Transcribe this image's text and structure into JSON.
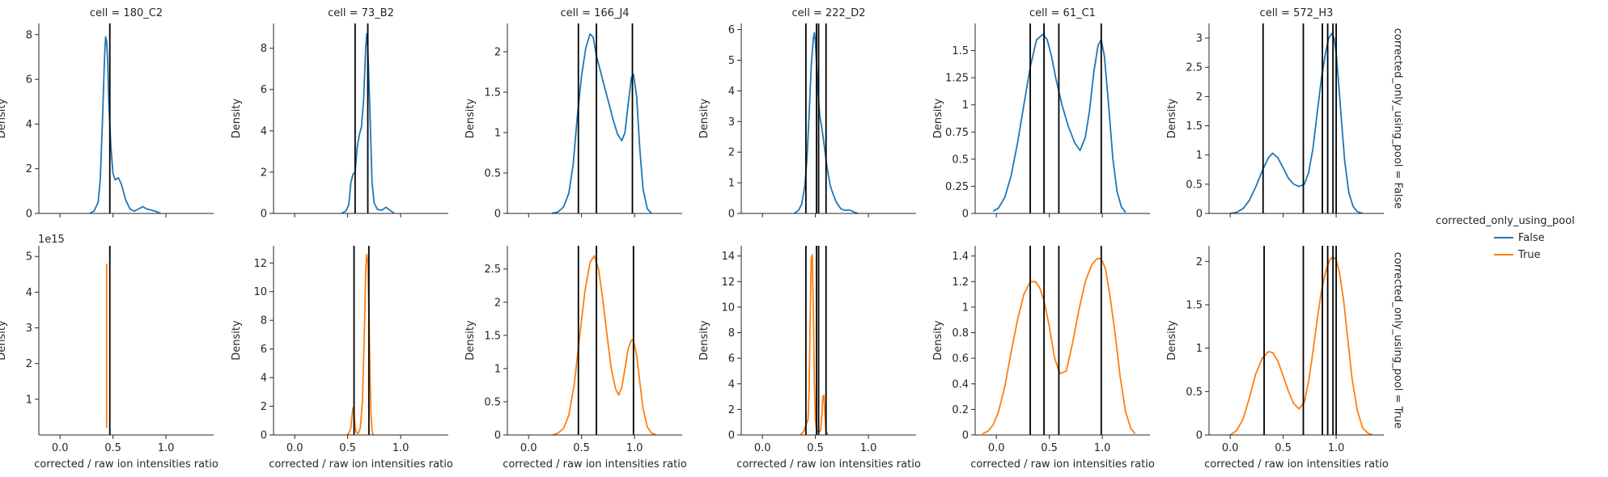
{
  "figure": {
    "columns": [
      "cell = 180_C2",
      "cell = 73_B2",
      "cell = 166_J4",
      "cell = 222_D2",
      "cell = 61_C1",
      "cell = 572_H3"
    ],
    "row_labels": [
      "corrected_only_using_pool = False",
      "corrected_only_using_pool = True"
    ],
    "xlabel": "corrected / raw ion intensities ratio",
    "ylabel": "Density",
    "legend": {
      "title": "corrected_only_using_pool",
      "entries": [
        {
          "label": "False",
          "color": "#1f77b4"
        },
        {
          "label": "True",
          "color": "#ff7f0e"
        }
      ]
    }
  },
  "chart_data": {
    "type": "line",
    "description_of_kind": "kde facet grid",
    "x_ticks": [
      0.0,
      0.5,
      1.0
    ],
    "xlim": [
      -0.2,
      1.45
    ],
    "panels": [
      {
        "cell": "180_C2",
        "row": 0,
        "ylim": [
          0,
          8.5
        ],
        "y_ticks": [
          0,
          2,
          4,
          6,
          8
        ],
        "y_offset": "",
        "vlines": [
          0.47
        ],
        "series": {
          "name": "False",
          "x": [
            0.28,
            0.32,
            0.36,
            0.38,
            0.4,
            0.42,
            0.43,
            0.44,
            0.45,
            0.46,
            0.48,
            0.5,
            0.52,
            0.55,
            0.58,
            0.62,
            0.66,
            0.7,
            0.74,
            0.78,
            0.82,
            0.86,
            0.9,
            0.95
          ],
          "y": [
            0,
            0.1,
            0.5,
            1.5,
            4.0,
            7.0,
            7.9,
            7.7,
            6.8,
            5.0,
            3.0,
            1.8,
            1.5,
            1.6,
            1.3,
            0.6,
            0.2,
            0.1,
            0.2,
            0.3,
            0.2,
            0.15,
            0.1,
            0
          ]
        }
      },
      {
        "cell": "73_B2",
        "row": 0,
        "ylim": [
          0,
          9.2
        ],
        "y_ticks": [
          0,
          2,
          4,
          6,
          8
        ],
        "y_offset": "",
        "vlines": [
          0.57,
          0.69
        ],
        "series": {
          "name": "False",
          "x": [
            0.44,
            0.48,
            0.51,
            0.53,
            0.55,
            0.57,
            0.59,
            0.61,
            0.63,
            0.65,
            0.67,
            0.68,
            0.69,
            0.71,
            0.73,
            0.75,
            0.78,
            0.82,
            0.86,
            0.9,
            0.94
          ],
          "y": [
            0,
            0.1,
            0.4,
            1.5,
            1.9,
            2.0,
            3.2,
            3.8,
            4.2,
            5.5,
            8.0,
            8.7,
            8.0,
            5.0,
            1.5,
            0.5,
            0.2,
            0.15,
            0.3,
            0.15,
            0
          ]
        }
      },
      {
        "cell": "166_J4",
        "row": 0,
        "ylim": [
          0,
          2.35
        ],
        "y_ticks": [
          0.0,
          0.5,
          1.0,
          1.5,
          2.0
        ],
        "y_offset": "",
        "vlines": [
          0.47,
          0.64,
          0.98
        ],
        "series": {
          "name": "False",
          "x": [
            0.22,
            0.28,
            0.33,
            0.38,
            0.42,
            0.46,
            0.5,
            0.54,
            0.58,
            0.61,
            0.64,
            0.68,
            0.72,
            0.76,
            0.8,
            0.84,
            0.88,
            0.91,
            0.94,
            0.97,
            0.99,
            1.02,
            1.05,
            1.08,
            1.12,
            1.16
          ],
          "y": [
            0,
            0.02,
            0.08,
            0.25,
            0.6,
            1.2,
            1.7,
            2.05,
            2.22,
            2.18,
            1.95,
            1.75,
            1.55,
            1.35,
            1.15,
            0.98,
            0.9,
            1.0,
            1.35,
            1.68,
            1.72,
            1.45,
            0.8,
            0.3,
            0.06,
            0
          ]
        }
      },
      {
        "cell": "222_D2",
        "row": 0,
        "ylim": [
          0,
          6.2
        ],
        "y_ticks": [
          0,
          1,
          2,
          3,
          4,
          5,
          6
        ],
        "y_offset": "",
        "vlines": [
          0.41,
          0.51,
          0.53,
          0.6
        ],
        "series": {
          "name": "False",
          "x": [
            0.3,
            0.34,
            0.37,
            0.4,
            0.42,
            0.44,
            0.46,
            0.48,
            0.49,
            0.5,
            0.52,
            0.54,
            0.56,
            0.58,
            0.61,
            0.64,
            0.67,
            0.7,
            0.74,
            0.78,
            0.82,
            0.86,
            0.9
          ],
          "y": [
            0,
            0.1,
            0.3,
            0.9,
            1.8,
            3.2,
            4.8,
            5.7,
            5.9,
            5.6,
            4.2,
            3.2,
            2.8,
            2.3,
            1.5,
            0.9,
            0.6,
            0.35,
            0.15,
            0.1,
            0.12,
            0.05,
            0
          ]
        }
      },
      {
        "cell": "61_C1",
        "row": 0,
        "ylim": [
          0,
          1.75
        ],
        "y_ticks": [
          0.0,
          0.25,
          0.5,
          0.75,
          1.0,
          1.25,
          1.5
        ],
        "y_offset": "",
        "vlines": [
          0.32,
          0.45,
          0.59,
          0.99
        ],
        "series": {
          "name": "False",
          "x": [
            -0.03,
            0.02,
            0.08,
            0.14,
            0.2,
            0.26,
            0.32,
            0.38,
            0.44,
            0.48,
            0.52,
            0.56,
            0.62,
            0.68,
            0.74,
            0.79,
            0.84,
            0.88,
            0.92,
            0.96,
            0.99,
            1.02,
            1.06,
            1.1,
            1.14,
            1.18,
            1.22
          ],
          "y": [
            0.02,
            0.05,
            0.15,
            0.35,
            0.65,
            1.0,
            1.35,
            1.6,
            1.65,
            1.6,
            1.45,
            1.25,
            1.0,
            0.8,
            0.65,
            0.58,
            0.7,
            0.95,
            1.3,
            1.55,
            1.6,
            1.45,
            1.0,
            0.5,
            0.2,
            0.06,
            0.01
          ]
        }
      },
      {
        "cell": "572_H3",
        "row": 0,
        "ylim": [
          0,
          3.25
        ],
        "y_ticks": [
          0.0,
          0.5,
          1.0,
          1.5,
          2.0,
          2.5,
          3.0
        ],
        "y_offset": "",
        "vlines": [
          0.31,
          0.69,
          0.87,
          0.92,
          0.97,
          1.0
        ],
        "series": {
          "name": "False",
          "x": [
            0.0,
            0.06,
            0.12,
            0.18,
            0.24,
            0.3,
            0.36,
            0.4,
            0.45,
            0.5,
            0.55,
            0.6,
            0.65,
            0.7,
            0.74,
            0.78,
            0.82,
            0.86,
            0.9,
            0.93,
            0.96,
            0.98,
            1.0,
            1.02,
            1.05,
            1.08,
            1.12,
            1.16,
            1.2,
            1.25
          ],
          "y": [
            0,
            0.02,
            0.08,
            0.22,
            0.45,
            0.72,
            0.95,
            1.03,
            0.95,
            0.78,
            0.6,
            0.5,
            0.46,
            0.5,
            0.7,
            1.1,
            1.7,
            2.3,
            2.75,
            3.0,
            3.08,
            3.0,
            2.75,
            2.3,
            1.6,
            0.9,
            0.35,
            0.12,
            0.03,
            0
          ]
        }
      },
      {
        "cell": "180_C2",
        "row": 1,
        "ylim": [
          0,
          5.3
        ],
        "y_ticks": [
          1,
          2,
          3,
          4,
          5
        ],
        "y_offset": "1e15",
        "vlines": [
          0.47
        ],
        "series": {
          "name": "True",
          "x": [
            0.44,
            0.44
          ],
          "y": [
            0.2,
            4.8
          ]
        }
      },
      {
        "cell": "73_B2",
        "row": 1,
        "ylim": [
          0,
          13.2
        ],
        "y_ticks": [
          0,
          2,
          4,
          6,
          8,
          10,
          12
        ],
        "y_offset": "",
        "vlines": [
          0.56,
          0.7
        ],
        "series": {
          "name": "True",
          "x": [
            0.49,
            0.51,
            0.53,
            0.54,
            0.55,
            0.56,
            0.57,
            0.58,
            0.6,
            0.62,
            0.64,
            0.66,
            0.67,
            0.68,
            0.69,
            0.7,
            0.71,
            0.72,
            0.73,
            0.74
          ],
          "y": [
            0,
            0.1,
            0.5,
            1.3,
            1.9,
            1.5,
            0.6,
            0.2,
            0.1,
            0.5,
            2.5,
            8.0,
            11.5,
            12.6,
            12.0,
            9.0,
            4.5,
            1.5,
            0.3,
            0
          ]
        }
      },
      {
        "cell": "166_J4",
        "row": 1,
        "ylim": [
          0,
          2.85
        ],
        "y_ticks": [
          0.0,
          0.5,
          1.0,
          1.5,
          2.0,
          2.5
        ],
        "y_offset": "",
        "vlines": [
          0.47,
          0.64,
          0.99
        ],
        "series": {
          "name": "True",
          "x": [
            0.23,
            0.28,
            0.33,
            0.38,
            0.43,
            0.48,
            0.53,
            0.58,
            0.62,
            0.66,
            0.7,
            0.74,
            0.78,
            0.82,
            0.85,
            0.88,
            0.91,
            0.94,
            0.97,
            0.99,
            1.02,
            1.05,
            1.08,
            1.12,
            1.16,
            1.2
          ],
          "y": [
            0,
            0.03,
            0.1,
            0.3,
            0.75,
            1.45,
            2.15,
            2.6,
            2.7,
            2.5,
            2.05,
            1.5,
            1.0,
            0.7,
            0.6,
            0.72,
            1.0,
            1.3,
            1.43,
            1.42,
            1.2,
            0.8,
            0.4,
            0.12,
            0.03,
            0
          ]
        }
      },
      {
        "cell": "222_D2",
        "row": 1,
        "ylim": [
          0,
          14.8
        ],
        "y_ticks": [
          0,
          2,
          4,
          6,
          8,
          10,
          12,
          14
        ],
        "y_offset": "",
        "vlines": [
          0.41,
          0.51,
          0.53,
          0.6
        ],
        "series": {
          "name": "True",
          "x": [
            0.36,
            0.39,
            0.41,
            0.43,
            0.44,
            0.45,
            0.46,
            0.47,
            0.48,
            0.49,
            0.5,
            0.51,
            0.53,
            0.55,
            0.56,
            0.57,
            0.58,
            0.59,
            0.6,
            0.62
          ],
          "y": [
            0,
            0.3,
            0.8,
            1.2,
            3.5,
            9.0,
            13.8,
            14.1,
            10.0,
            4.0,
            1.2,
            0.4,
            0.2,
            0.4,
            1.5,
            3.0,
            3.1,
            1.5,
            0.3,
            0
          ]
        }
      },
      {
        "cell": "61_C1",
        "row": 1,
        "ylim": [
          0,
          1.48
        ],
        "y_ticks": [
          0.0,
          0.2,
          0.4,
          0.6,
          0.8,
          1.0,
          1.2,
          1.4
        ],
        "y_offset": "",
        "vlines": [
          0.32,
          0.45,
          0.59,
          0.99
        ],
        "series": {
          "name": "True",
          "x": [
            -0.13,
            -0.08,
            -0.03,
            0.02,
            0.08,
            0.14,
            0.2,
            0.26,
            0.32,
            0.37,
            0.41,
            0.45,
            0.5,
            0.55,
            0.6,
            0.66,
            0.72,
            0.78,
            0.84,
            0.9,
            0.95,
            0.99,
            1.03,
            1.07,
            1.12,
            1.17,
            1.22,
            1.27,
            1.31
          ],
          "y": [
            0.01,
            0.03,
            0.08,
            0.18,
            0.38,
            0.65,
            0.9,
            1.1,
            1.2,
            1.2,
            1.15,
            1.05,
            0.85,
            0.6,
            0.48,
            0.5,
            0.72,
            0.98,
            1.2,
            1.33,
            1.38,
            1.38,
            1.3,
            1.1,
            0.8,
            0.45,
            0.18,
            0.05,
            0.01
          ]
        }
      },
      {
        "cell": "572_H3",
        "row": 1,
        "ylim": [
          0,
          2.18
        ],
        "y_ticks": [
          0.0,
          0.5,
          1.0,
          1.5,
          2.0
        ],
        "y_offset": "",
        "vlines": [
          0.32,
          0.69,
          0.87,
          0.92,
          0.97,
          1.0
        ],
        "series": {
          "name": "True",
          "x": [
            0.0,
            0.06,
            0.12,
            0.18,
            0.24,
            0.3,
            0.36,
            0.4,
            0.45,
            0.5,
            0.55,
            0.6,
            0.65,
            0.7,
            0.74,
            0.78,
            0.82,
            0.86,
            0.9,
            0.94,
            0.97,
            1.0,
            1.03,
            1.07,
            1.11,
            1.15,
            1.2,
            1.25,
            1.3,
            1.34
          ],
          "y": [
            0,
            0.05,
            0.18,
            0.42,
            0.7,
            0.88,
            0.96,
            0.95,
            0.85,
            0.68,
            0.5,
            0.36,
            0.3,
            0.38,
            0.62,
            0.95,
            1.32,
            1.65,
            1.88,
            2.02,
            2.05,
            2.02,
            1.88,
            1.55,
            1.1,
            0.65,
            0.28,
            0.08,
            0.02,
            0
          ]
        }
      }
    ]
  }
}
